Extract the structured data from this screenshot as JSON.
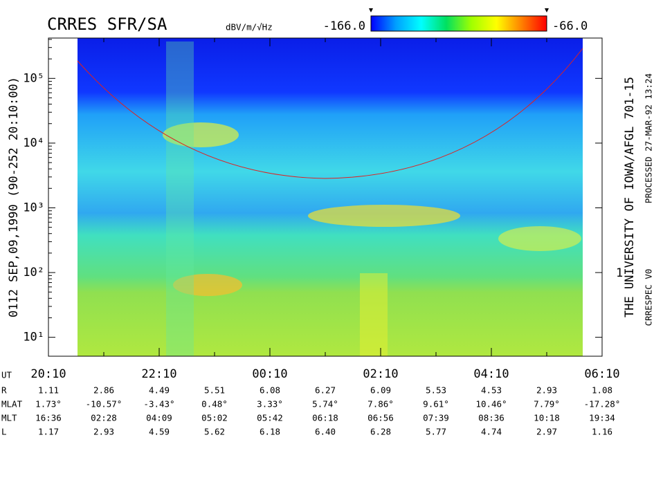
{
  "chart_data": {
    "type": "spectrogram",
    "title": "CRRES SFR/SA",
    "left_label": "0112 SEP,09,1990 (90-252 20:10:00)",
    "right_labels": [
      "THE UNIVERSITY OF IOWA/AFGL 701-15",
      "PROCESSED 27-MAR-92 13:24",
      "CRRESPEC V0"
    ],
    "y2_annotation": "1",
    "ylog": true,
    "ylim": [
      5.1,
      420000
    ],
    "yticks": [
      {
        "value": 10,
        "label": "10¹"
      },
      {
        "value": 100,
        "label": "10²"
      },
      {
        "value": 1000,
        "label": "10³"
      },
      {
        "value": 10000,
        "label": "10⁴"
      },
      {
        "value": 100000,
        "label": "10⁵"
      }
    ],
    "xticks": [
      "20:10",
      "22:10",
      "00:10",
      "02:10",
      "04:10",
      "06:10"
    ],
    "zlabel": "dBV/m/√Hz",
    "zticks": [
      {
        "value": -166,
        "label": "-166.0"
      },
      {
        "value": -66,
        "label": "-66.0"
      }
    ],
    "zcolors": [
      "#0000ff",
      "#00a0ff",
      "#00ffff",
      "#00e060",
      "#a0ff00",
      "#ffff00",
      "#ff8000",
      "#ff0000"
    ],
    "ephemeris": {
      "labels": [
        "UT",
        "R",
        "MLAT",
        "MLT",
        "L"
      ],
      "rows": [
        [
          "1.11",
          "2.86",
          "4.49",
          "5.51",
          "6.08",
          "6.27",
          "6.09",
          "5.53",
          "4.53",
          "2.93",
          "1.08"
        ],
        [
          "1.73°",
          "-10.57°",
          "-3.43°",
          "0.48°",
          "3.33°",
          "5.74°",
          "7.86°",
          "9.61°",
          "10.46°",
          "7.79°",
          "-17.28°"
        ],
        [
          "16:36",
          "02:28",
          "04:09",
          "05:02",
          "05:42",
          "06:18",
          "06:56",
          "07:39",
          "08:36",
          "10:18",
          "19:34"
        ],
        [
          "1.17",
          "2.93",
          "4.59",
          "5.62",
          "6.18",
          "6.40",
          "6.28",
          "5.77",
          "4.74",
          "2.97",
          "1.16"
        ]
      ]
    }
  }
}
